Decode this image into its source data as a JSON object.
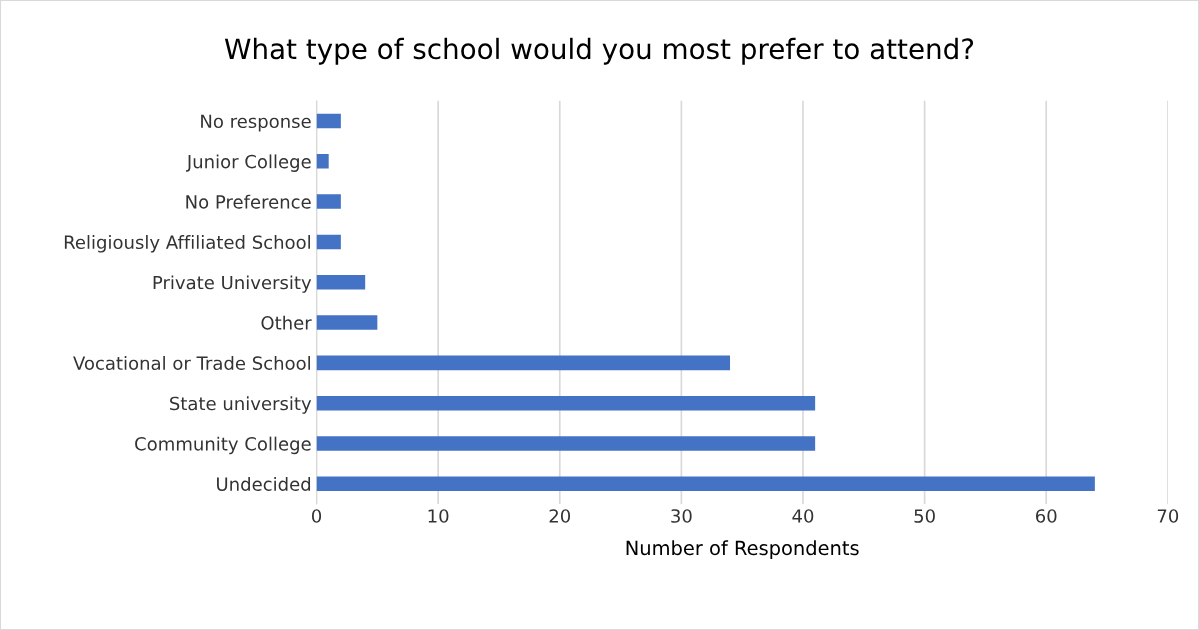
{
  "chart_data": {
    "type": "bar",
    "orientation": "horizontal",
    "title": "What type of school would you most prefer to attend?",
    "xlabel": "Number of Respondents",
    "categories": [
      "No response",
      "Junior College",
      "No Preference",
      "Religiously Affiliated School",
      "Private University",
      "Other",
      "Vocational or Trade School",
      "State university",
      "Community College",
      "Undecided"
    ],
    "values": [
      2,
      1,
      2,
      2,
      4,
      5,
      34,
      41,
      41,
      64
    ],
    "color": "#4472c4",
    "xlim": [
      0,
      70
    ],
    "xticks": [
      0,
      10,
      20,
      30,
      40,
      50,
      60,
      70
    ],
    "grid": "x",
    "legend": false
  }
}
